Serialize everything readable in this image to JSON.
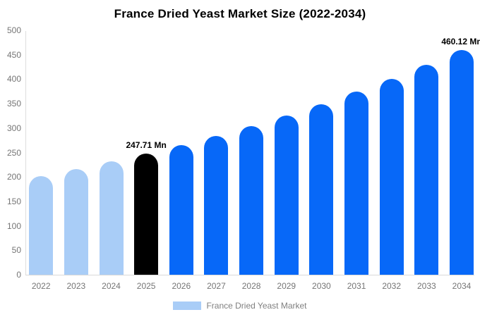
{
  "title": "France Dried Yeast Market Size (2022-2034)",
  "chart_data": {
    "type": "bar",
    "title": "France Dried Yeast Market Size (2022-2034)",
    "categories": [
      "2022",
      "2023",
      "2024",
      "2025",
      "2026",
      "2027",
      "2028",
      "2029",
      "2030",
      "2031",
      "2032",
      "2033",
      "2034"
    ],
    "values": [
      201.5,
      215.9,
      231.3,
      247.71,
      265.3,
      284.2,
      304.5,
      326.1,
      349.4,
      374.2,
      400.9,
      429.4,
      460.12
    ],
    "point_labels": [
      "",
      "",
      "",
      "247.71 Mn",
      "",
      "",
      "",
      "",
      "",
      "",
      "",
      "",
      "460.12 Mn"
    ],
    "bar_colors": [
      "#a9cdf7",
      "#a9cdf7",
      "#a9cdf7",
      "#000000",
      "#0768f8",
      "#0768f8",
      "#0768f8",
      "#0768f8",
      "#0768f8",
      "#0768f8",
      "#0768f8",
      "#0768f8",
      "#0768f8"
    ],
    "xlabel": "",
    "ylabel": "",
    "ylim": [
      0,
      500
    ],
    "yticks": [
      0,
      50,
      100,
      150,
      200,
      250,
      300,
      350,
      400,
      450,
      500
    ],
    "grid": false,
    "legend": {
      "position": "bottom",
      "label": "France Dried Yeast Market",
      "swatch_color": "#a9cdf7"
    }
  },
  "colors": {
    "historical_bar": "#a9cdf7",
    "base_year_bar": "#000000",
    "forecast_bar": "#0768f8",
    "axis_text": "#757575",
    "axis_line": "#d9d9d9",
    "legend_text": "#808080",
    "background": "#ffffff"
  }
}
